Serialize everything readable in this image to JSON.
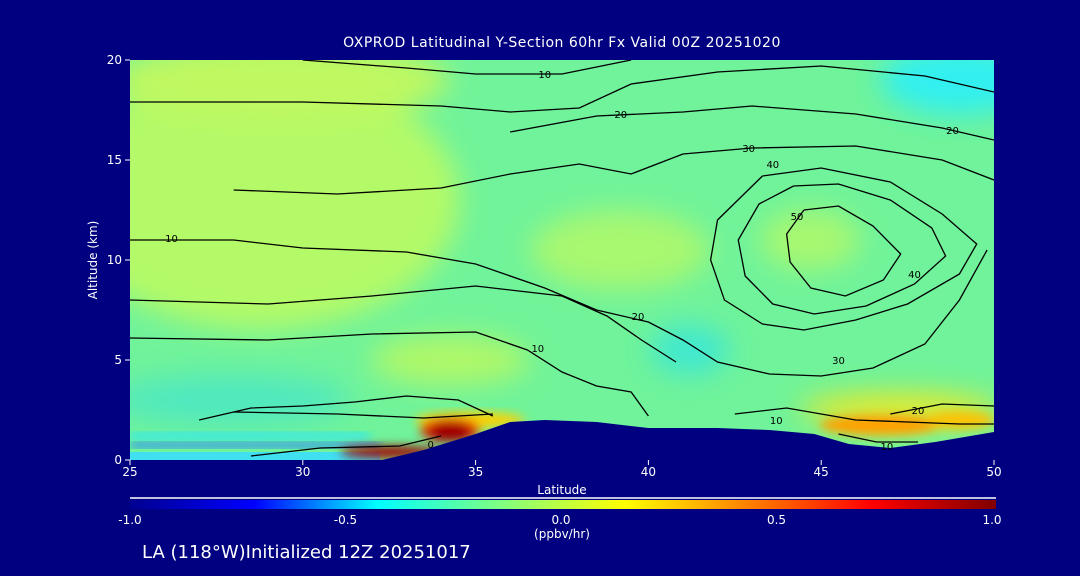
{
  "chart_data": {
    "type": "heatmap",
    "title": "OXPROD Latitudinal Y-Section 60hr  Fx Valid 00Z 20251020",
    "xlabel": "Latitude",
    "ylabel": "Altitude (km)",
    "xlim": [
      25,
      50
    ],
    "ylim": [
      0,
      20
    ],
    "xticks": [
      "25",
      "30",
      "35",
      "40",
      "45",
      "50"
    ],
    "yticks": [
      "0",
      "5",
      "10",
      "15",
      "20"
    ],
    "colorbar": {
      "range": [
        -1.0,
        1.0
      ],
      "ticks": [
        "-1.0",
        "-0.5",
        "0.0",
        "0.5",
        "1.0"
      ],
      "unit": "(ppbv/hr)",
      "colors": [
        "#000090",
        "#0000ff",
        "#00ffff",
        "#80ff80",
        "#ffff00",
        "#ff8000",
        "#ff0000",
        "#800000"
      ]
    },
    "contour_labels": [
      {
        "text": "10",
        "lat": 37,
        "alt": 19.3
      },
      {
        "text": "20",
        "lat": 39.2,
        "alt": 17.3
      },
      {
        "text": "20",
        "lat": 48.8,
        "alt": 16.5
      },
      {
        "text": "30",
        "lat": 42.9,
        "alt": 15.6
      },
      {
        "text": "40",
        "lat": 43.6,
        "alt": 14.8
      },
      {
        "text": "50",
        "lat": 44.3,
        "alt": 12.2
      },
      {
        "text": "10",
        "lat": 26.2,
        "alt": 11.1
      },
      {
        "text": "40",
        "lat": 47.7,
        "alt": 9.3
      },
      {
        "text": "20",
        "lat": 39.7,
        "alt": 7.2
      },
      {
        "text": "10",
        "lat": 36.8,
        "alt": 5.6
      },
      {
        "text": "30",
        "lat": 45.5,
        "alt": 5.0
      },
      {
        "text": "20",
        "lat": 47.8,
        "alt": 2.5
      },
      {
        "text": "10",
        "lat": 43.7,
        "alt": 2.0
      },
      {
        "text": "10",
        "lat": 46.9,
        "alt": 0.7
      },
      {
        "text": "0",
        "lat": 33.7,
        "alt": 0.8
      }
    ],
    "terrain": [
      [
        32.3,
        0
      ],
      [
        33.5,
        0.5
      ],
      [
        35,
        1.3
      ],
      [
        36,
        1.9
      ],
      [
        37,
        2.0
      ],
      [
        38.5,
        1.9
      ],
      [
        40,
        1.6
      ],
      [
        42,
        1.6
      ],
      [
        43.5,
        1.5
      ],
      [
        44.8,
        1.3
      ],
      [
        45.8,
        0.8
      ],
      [
        47,
        0.6
      ],
      [
        48.3,
        0.9
      ],
      [
        50,
        1.4
      ],
      [
        50,
        0
      ]
    ]
  },
  "footer": "LA (118°W)Initialized 12Z 20251017"
}
